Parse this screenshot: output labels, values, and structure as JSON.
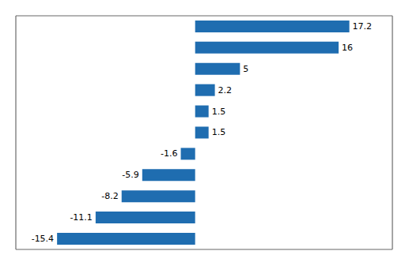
{
  "chart_data": {
    "type": "bar",
    "orientation": "horizontal",
    "values": [
      17.2,
      16.0,
      5.0,
      2.2,
      1.5,
      1.5,
      -1.6,
      -5.9,
      -8.2,
      -11.1,
      -15.4
    ],
    "color": "#1F6DB0",
    "xlim": [
      -20,
      22
    ],
    "xticks": [
      -20,
      -15,
      -10,
      -5,
      0,
      5,
      10,
      15,
      20
    ],
    "grid": true,
    "data_labels": true,
    "tick_labels": false
  }
}
